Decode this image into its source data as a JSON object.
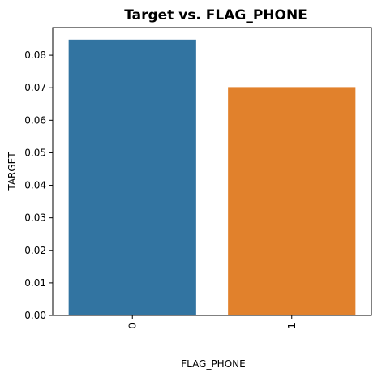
{
  "chart_data": {
    "type": "bar",
    "title": "Target vs. FLAG_PHONE",
    "xlabel": "FLAG_PHONE",
    "ylabel": "TARGET",
    "categories": [
      "0",
      "1"
    ],
    "values": [
      0.0848,
      0.0702
    ],
    "ylim": [
      0,
      0.0885
    ],
    "yticks": [
      "0.00",
      "0.01",
      "0.02",
      "0.03",
      "0.04",
      "0.05",
      "0.06",
      "0.07",
      "0.08"
    ],
    "x_tick_rotation": 90,
    "grid": false,
    "legend": "none",
    "colors": [
      "#3274a1",
      "#e1812c"
    ]
  }
}
